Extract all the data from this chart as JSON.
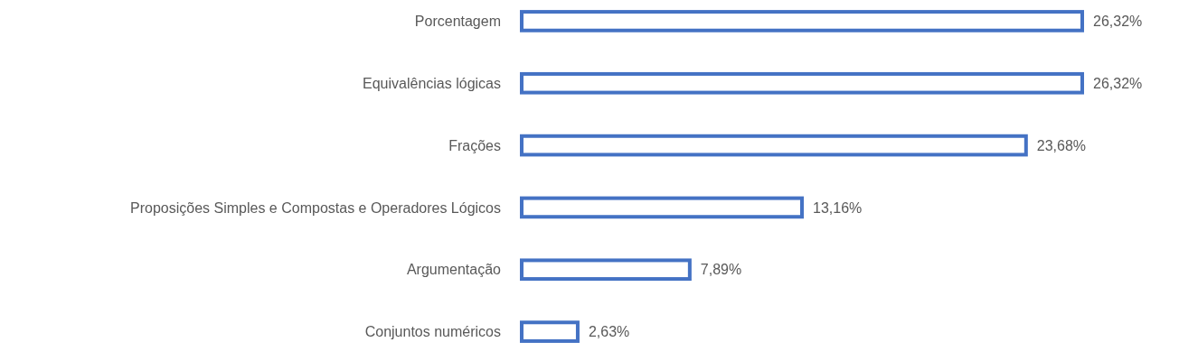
{
  "chart_data": {
    "type": "bar",
    "orientation": "horizontal",
    "categories": [
      "Porcentagem",
      "Equivalências lógicas",
      "Frações",
      "Proposições Simples e Compostas e Operadores Lógicos",
      "Argumentação",
      "Conjuntos numéricos"
    ],
    "values": [
      26.32,
      26.32,
      23.68,
      13.16,
      7.89,
      2.63
    ],
    "value_labels": [
      "26,32%",
      "26,32%",
      "23,68%",
      "13,16%",
      "7,89%",
      "2,63%"
    ],
    "color": "#4472c4"
  }
}
